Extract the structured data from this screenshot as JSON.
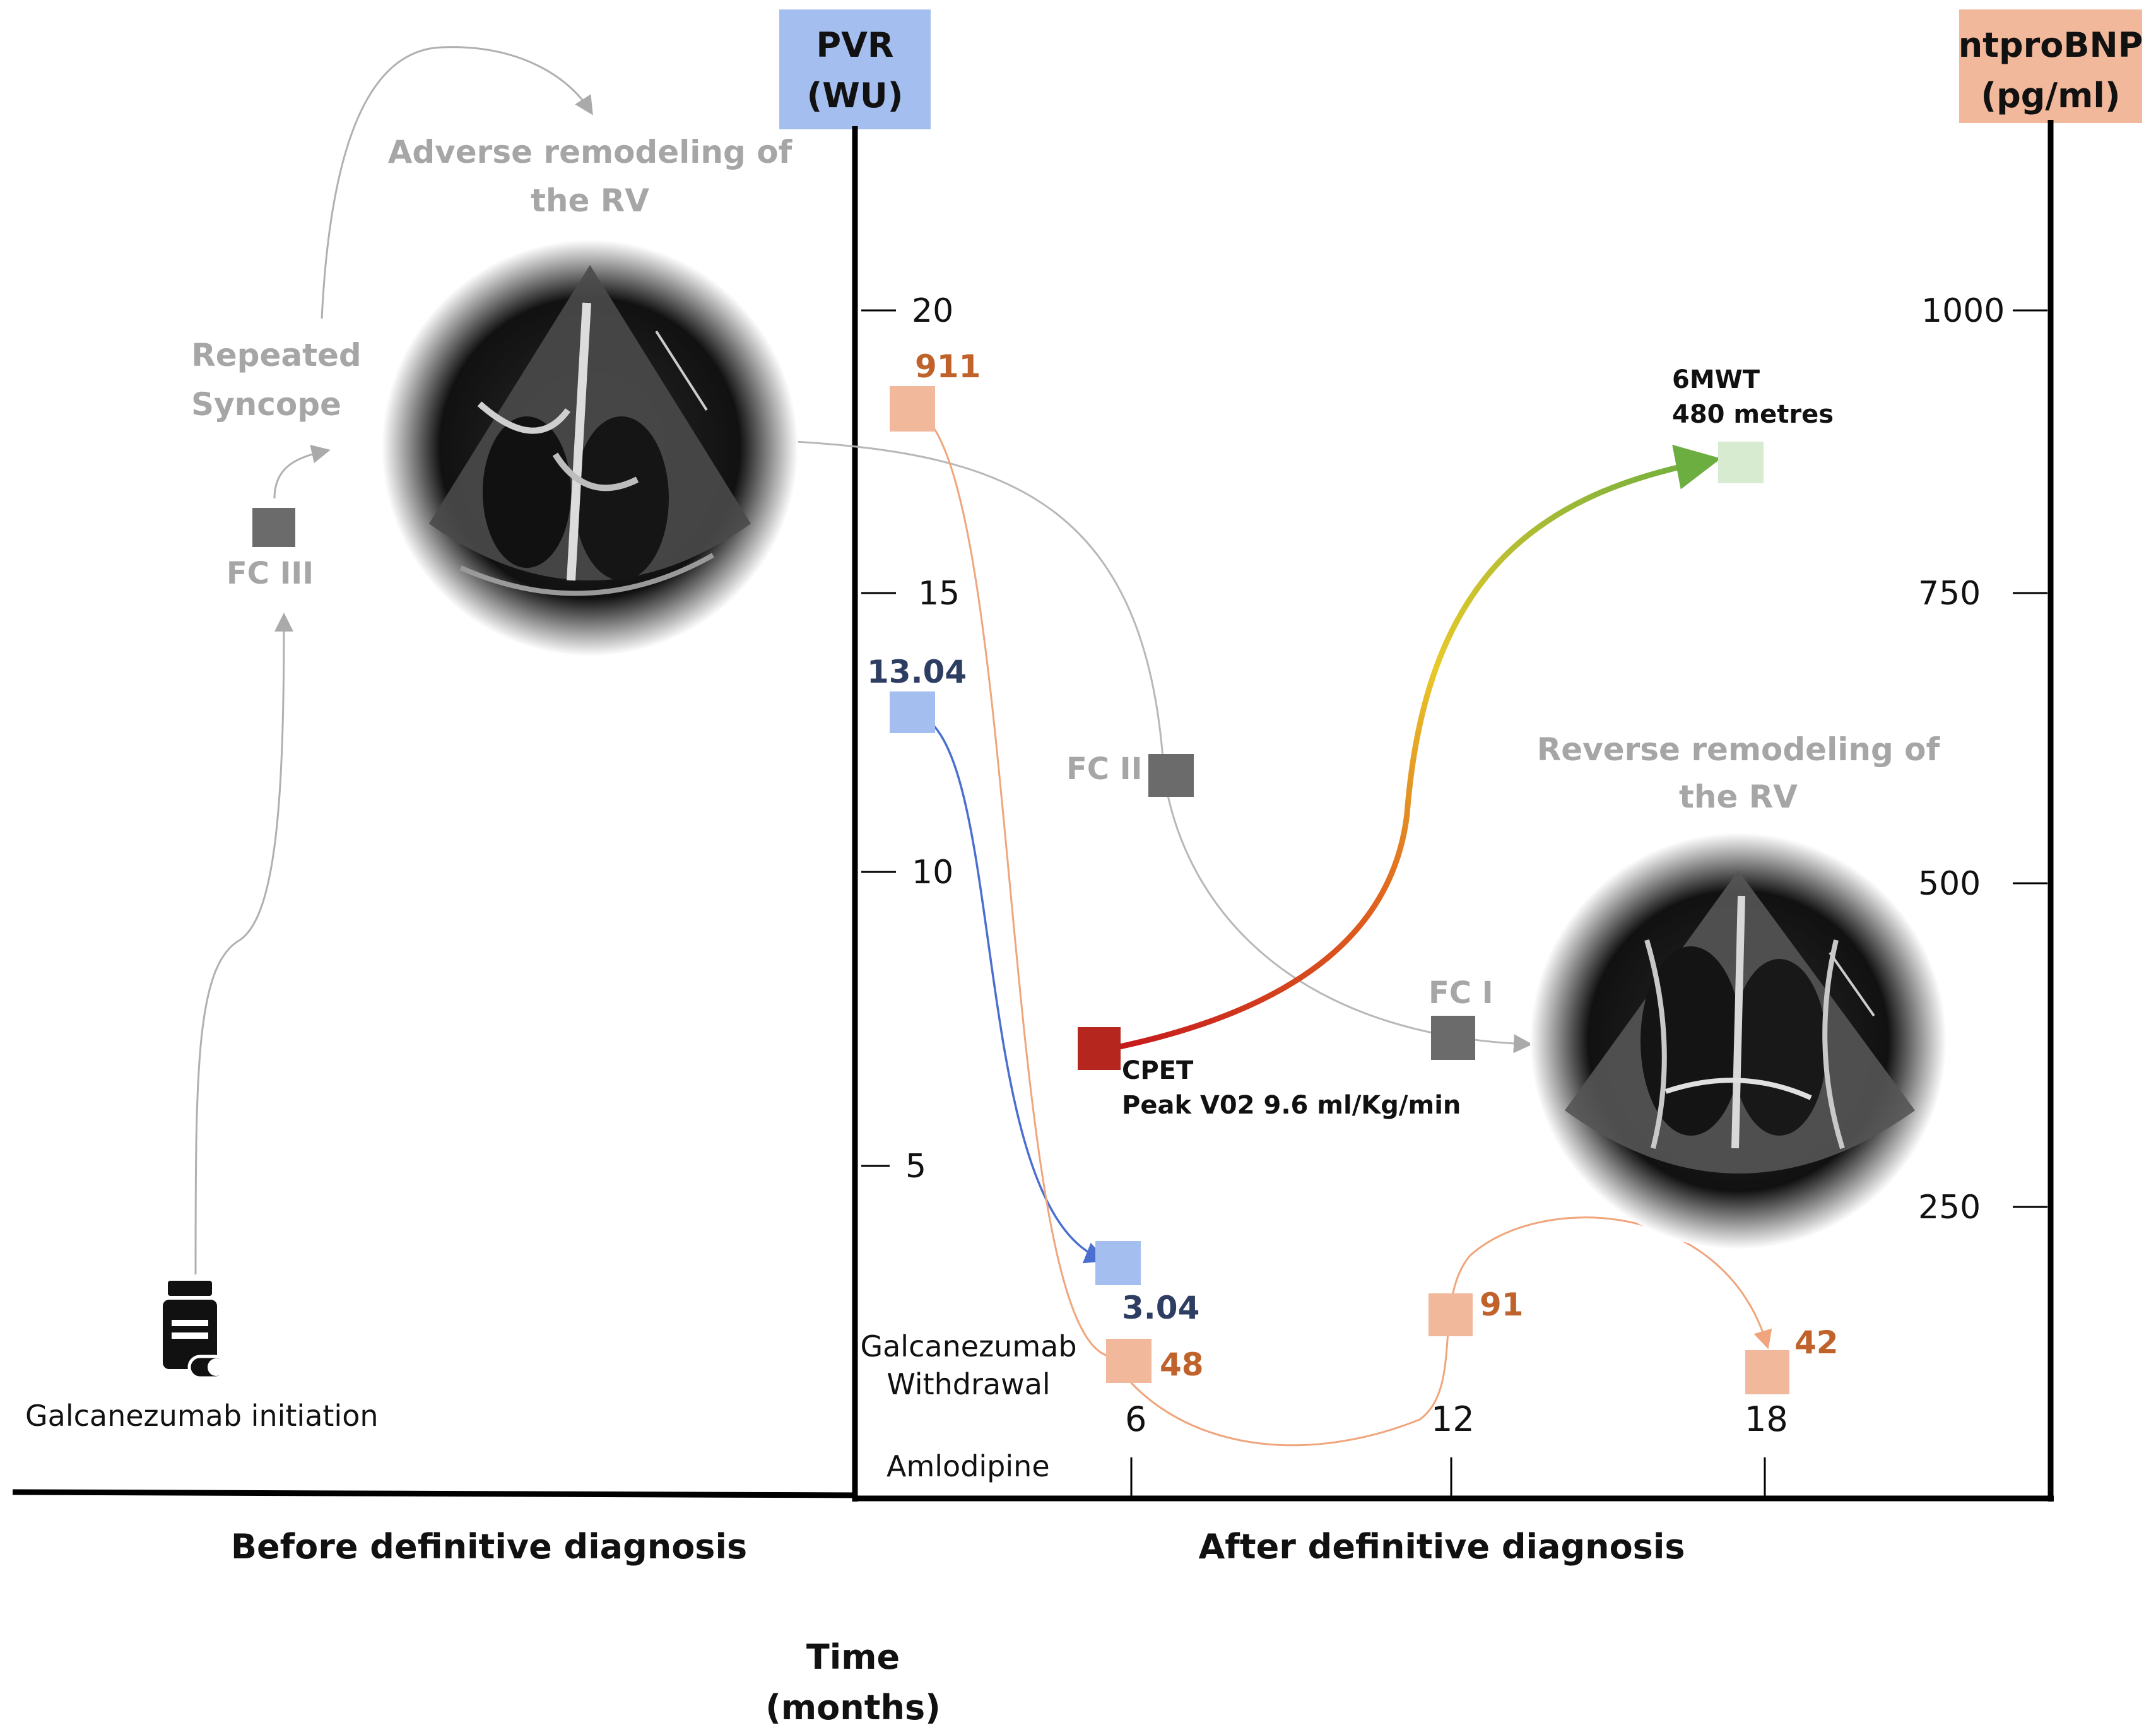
{
  "header_boxes": {
    "pvr": [
      "PVR",
      "(WU)"
    ],
    "ntprobnp": [
      "ntproBNP",
      "(pg/ml)"
    ]
  },
  "pvr_axis_ticks": [
    "20",
    "15",
    "10",
    "5"
  ],
  "ntprobnp_axis_ticks": [
    "1000",
    "750",
    "500",
    "250"
  ],
  "time_ticks": [
    "6",
    "12",
    "18"
  ],
  "labels": {
    "adverse_remodeling": [
      "Adverse remodeling of",
      "the RV"
    ],
    "reverse_remodeling": [
      "Reverse remodeling of",
      "the RV"
    ],
    "repeated_syncope": [
      "Repeated",
      "Syncope"
    ],
    "fc_iii": "FC III",
    "fc_ii": "FC II",
    "fc_i": "FC I",
    "cpet": [
      "CPET",
      "Peak V02 9.6 ml/Kg/min"
    ],
    "six_mwt": [
      "6MWT",
      "480 metres"
    ],
    "galcanezumab_initiation": "Galcanezumab initiation",
    "galcanezumab_withdrawal": [
      "Galcanezumab",
      "Withdrawal"
    ],
    "amlodipine": "Amlodipine",
    "before": "Before definitive diagnosis",
    "after": "After definitive diagnosis",
    "time_axis": [
      "Time",
      "(months)"
    ]
  },
  "pvr_values": [
    "13.04",
    "3.04"
  ],
  "ntprobnp_values": [
    "911",
    "48",
    "91",
    "42"
  ],
  "colors": {
    "pvr_box": "#a4bfef",
    "pvr_text": "#2e3e63",
    "ntprobnp_box": "#f2b89b",
    "ntprobnp_text": "#c0622b",
    "gray_text": "#a6a6a6",
    "fc_box": "#6b6b6b",
    "cpet_box": "#b5261e",
    "six_mwt_box": "#d6ebcf"
  }
}
